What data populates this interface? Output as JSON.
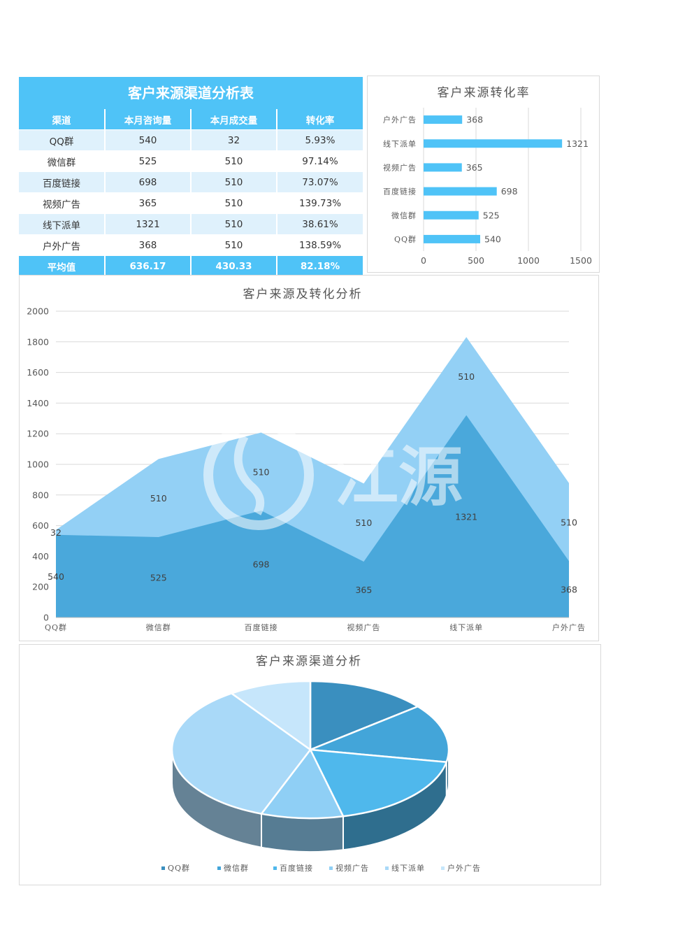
{
  "table": {
    "title": "客户来源渠道分析表",
    "headers": [
      "渠道",
      "本月咨询量",
      "本月成交量",
      "转化率"
    ],
    "rows": [
      [
        "QQ群",
        "540",
        "32",
        "5.93%"
      ],
      [
        "微信群",
        "525",
        "510",
        "97.14%"
      ],
      [
        "百度链接",
        "698",
        "510",
        "73.07%"
      ],
      [
        "视频广告",
        "365",
        "510",
        "139.73%"
      ],
      [
        "线下派单",
        "1321",
        "510",
        "38.61%"
      ],
      [
        "户外广告",
        "368",
        "510",
        "138.59%"
      ]
    ],
    "footer": [
      "平均值",
      "636.17",
      "430.33",
      "82.18%"
    ]
  },
  "colors": {
    "accent": "#4fc3f7",
    "row_alt": "#dff1fc",
    "bar": "#4fc3f7",
    "area_front": "#4aa8db",
    "area_back": "#93d0f5"
  },
  "chart_data": [
    {
      "type": "bar",
      "orientation": "horizontal",
      "title": "客户来源转化率",
      "categories": [
        "户外广告",
        "线下派单",
        "视频广告",
        "百度链接",
        "微信群",
        "QQ群"
      ],
      "values": [
        368,
        1321,
        365,
        698,
        525,
        540
      ],
      "xlim": [
        0,
        1500
      ],
      "xticks": [
        "0",
        "500",
        "1000",
        "1500"
      ],
      "grid": true
    },
    {
      "type": "area",
      "stacked": true,
      "title": "客户来源及转化分析",
      "categories": [
        "QQ群",
        "微信群",
        "百度链接",
        "视频广告",
        "线下派单",
        "户外广告"
      ],
      "series": [
        {
          "values": [
            540,
            525,
            698,
            365,
            1321,
            368
          ],
          "color": "#4aa8db"
        },
        {
          "values": [
            32,
            510,
            510,
            510,
            510,
            510
          ],
          "color": "#93d0f5"
        }
      ],
      "ylim": [
        0,
        2000
      ],
      "yticks": [
        "0",
        "200",
        "400",
        "600",
        "800",
        "1000",
        "1200",
        "1400",
        "1600",
        "1800",
        "2000"
      ],
      "grid": true,
      "watermark": "江源"
    },
    {
      "type": "pie",
      "style": "3d",
      "title": "客户来源渠道分析",
      "categories": [
        "QQ群",
        "微信群",
        "百度链接",
        "视频广告",
        "线下派单",
        "户外广告"
      ],
      "values": [
        540,
        525,
        698,
        365,
        1321,
        368
      ],
      "colors": [
        "#3a8fbf",
        "#43a5d9",
        "#4fb8ec",
        "#8fcff5",
        "#a9d9f8",
        "#c6e6fb"
      ],
      "legend": "bottom"
    }
  ]
}
